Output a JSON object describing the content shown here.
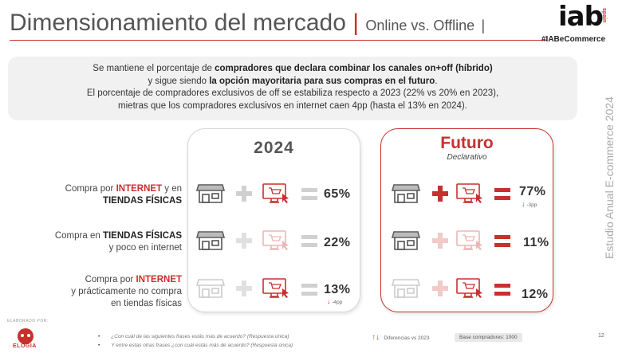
{
  "header": {
    "title": "Dimensionamiento del mercado",
    "separator": "|",
    "subtitle": "Online vs. Offline",
    "subtitle_sep": "|",
    "hashtag": "#IABeCommerce"
  },
  "logo": {
    "word": "iab",
    "country": "spain"
  },
  "summary": {
    "l1a": "Se mantiene el porcentaje de ",
    "l1b": "compradores que declara combinar los canales on+off (híbrido)",
    "l2a": "y sigue siendo ",
    "l2b": "la opción mayoritaria para sus compras en el futuro",
    "l2c": ".",
    "l3": "El porcentaje de compradores exclusivos de off se estabiliza respecto a 2023 (22% vs 20% en 2023),",
    "l4": "mietras que los compradores exclusivos en internet caen 4pp (hasta el 13% en 2024)."
  },
  "side_label": "Estudio Anual E-commerce  2024",
  "columns": {
    "current": {
      "title": "2024"
    },
    "future": {
      "title": "Futuro",
      "subtitle": "Declarativo"
    }
  },
  "rows": [
    {
      "label_parts": [
        "Compra por ",
        "INTERNET",
        " y en",
        "TIENDAS FÍSICAS"
      ],
      "value_2024": "65%",
      "value_future": "77%",
      "delta_future": "-3pp"
    },
    {
      "label_parts": [
        "Compra en ",
        "TIENDAS FÍSICAS",
        "y poco en internet"
      ],
      "value_2024": "22%",
      "value_future": "11%"
    },
    {
      "label_parts": [
        "Compra por ",
        "INTERNET",
        "y prácticamente no compra",
        "en tiendas físicas"
      ],
      "value_2024": "13%",
      "delta_2024": "-4pp",
      "value_future": "12%"
    }
  ],
  "icons": {
    "store": "store-icon",
    "computer": "computer-cart-icon",
    "plus": "plus-icon",
    "equals": "equals-icon"
  },
  "footer": {
    "made_by": "ELABORADO POR:",
    "brand": "ELOGIA",
    "note1": "¿Con cuál de las siguientes frases estás más de acuerdo? (Respuesta única)",
    "note2": "Y entre estas otras frases ¿con cuál estás más de acuerdo? (Respuesta única)",
    "legend": "Diferencias vs 2023",
    "base": "Base compradores: 1000",
    "page": "12"
  },
  "colors": {
    "accent": "#c8302e",
    "text": "#444444",
    "muted": "#d0d0d0"
  }
}
